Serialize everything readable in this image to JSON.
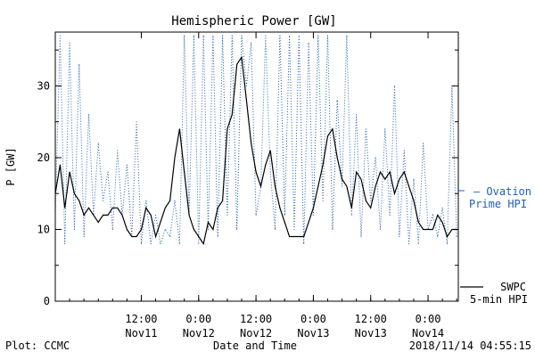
{
  "chart_data": {
    "type": "line",
    "title": "Hemispheric Power [GW]",
    "xlabel": "Date and Time",
    "ylabel": "P [GW]",
    "ylim": [
      0,
      37.5
    ],
    "xlim": [
      "2018-11-10T18:00",
      "2018-11-14T06:20"
    ],
    "yticks": [
      0,
      10,
      20,
      30
    ],
    "xticks": [
      {
        "value": "2018-11-11T12:00",
        "time": "12:00",
        "date": "Nov11"
      },
      {
        "value": "2018-11-12T00:00",
        "time": "0:00",
        "date": "Nov12"
      },
      {
        "value": "2018-11-12T12:00",
        "time": "12:00",
        "date": "Nov12"
      },
      {
        "value": "2018-11-13T00:00",
        "time": "0:00",
        "date": "Nov13"
      },
      {
        "value": "2018-11-13T12:00",
        "time": "12:00",
        "date": "Nov13"
      },
      {
        "value": "2018-11-14T00:00",
        "time": "0:00",
        "date": "Nov14"
      }
    ],
    "grid": false,
    "legend_position": "right",
    "series": [
      {
        "name": "Ovation Prime HPI",
        "legend_lines": [
          "— Ovation",
          "Prime HPI"
        ],
        "color": "#1f5fb4",
        "style": "dotted",
        "x": [
          "2018-11-10T18:00",
          "2018-11-10T19:00",
          "2018-11-10T20:00",
          "2018-11-10T21:00",
          "2018-11-10T22:00",
          "2018-11-10T23:00",
          "2018-11-11T00:00",
          "2018-11-11T01:00",
          "2018-11-11T02:00",
          "2018-11-11T03:00",
          "2018-11-11T04:00",
          "2018-11-11T05:00",
          "2018-11-11T06:00",
          "2018-11-11T07:00",
          "2018-11-11T08:00",
          "2018-11-11T09:00",
          "2018-11-11T10:00",
          "2018-11-11T11:00",
          "2018-11-11T12:00",
          "2018-11-11T13:00",
          "2018-11-11T14:00",
          "2018-11-11T15:00",
          "2018-11-11T16:00",
          "2018-11-11T17:00",
          "2018-11-11T18:00",
          "2018-11-11T19:00",
          "2018-11-11T20:00",
          "2018-11-11T21:00",
          "2018-11-11T22:00",
          "2018-11-11T23:00",
          "2018-11-12T00:00",
          "2018-11-12T01:00",
          "2018-11-12T02:00",
          "2018-11-12T03:00",
          "2018-11-12T04:00",
          "2018-11-12T05:00",
          "2018-11-12T06:00",
          "2018-11-12T07:00",
          "2018-11-12T08:00",
          "2018-11-12T09:00",
          "2018-11-12T10:00",
          "2018-11-12T11:00",
          "2018-11-12T12:00",
          "2018-11-12T13:00",
          "2018-11-12T14:00",
          "2018-11-12T15:00",
          "2018-11-12T16:00",
          "2018-11-12T17:00",
          "2018-11-12T18:00",
          "2018-11-12T19:00",
          "2018-11-12T20:00",
          "2018-11-12T21:00",
          "2018-11-12T22:00",
          "2018-11-12T23:00",
          "2018-11-13T00:00",
          "2018-11-13T01:00",
          "2018-11-13T02:00",
          "2018-11-13T03:00",
          "2018-11-13T04:00",
          "2018-11-13T05:00",
          "2018-11-13T06:00",
          "2018-11-13T07:00",
          "2018-11-13T08:00",
          "2018-11-13T09:00",
          "2018-11-13T10:00",
          "2018-11-13T11:00",
          "2018-11-13T12:00",
          "2018-11-13T13:00",
          "2018-11-13T14:00",
          "2018-11-13T15:00",
          "2018-11-13T16:00",
          "2018-11-13T17:00",
          "2018-11-13T18:00",
          "2018-11-13T19:00",
          "2018-11-13T20:00",
          "2018-11-13T21:00",
          "2018-11-13T22:00",
          "2018-11-13T23:00",
          "2018-11-14T00:00",
          "2018-11-14T01:00",
          "2018-11-14T02:00",
          "2018-11-14T03:00",
          "2018-11-14T04:00",
          "2018-11-14T05:00",
          "2018-11-14T06:00"
        ],
        "values": [
          12,
          37,
          8,
          36,
          10,
          33,
          9,
          26,
          12,
          22,
          14,
          18,
          10,
          21,
          12,
          19,
          9,
          25,
          8,
          14,
          8,
          12,
          8,
          10,
          9,
          14,
          8,
          37,
          12,
          37,
          8,
          37,
          10,
          37,
          9,
          37,
          12,
          37,
          10,
          37,
          30,
          36,
          12,
          16,
          37,
          18,
          10,
          37,
          12,
          37,
          10,
          37,
          8,
          36,
          12,
          37,
          14,
          37,
          10,
          28,
          16,
          37,
          12,
          26,
          9,
          24,
          14,
          20,
          10,
          24,
          12,
          30,
          9,
          21,
          8,
          17,
          8,
          22,
          10,
          12,
          9,
          13,
          8,
          30,
          9
        ]
      },
      {
        "name": "SWPC 5-min HPI",
        "legend_lines": [
          "SWPC",
          "5-min HPI"
        ],
        "color": "#000000",
        "style": "solid",
        "x": [
          "2018-11-10T18:00",
          "2018-11-10T19:00",
          "2018-11-10T20:00",
          "2018-11-10T21:00",
          "2018-11-10T22:00",
          "2018-11-10T23:00",
          "2018-11-11T00:00",
          "2018-11-11T01:00",
          "2018-11-11T02:00",
          "2018-11-11T03:00",
          "2018-11-11T04:00",
          "2018-11-11T05:00",
          "2018-11-11T06:00",
          "2018-11-11T07:00",
          "2018-11-11T08:00",
          "2018-11-11T09:00",
          "2018-11-11T10:00",
          "2018-11-11T11:00",
          "2018-11-11T12:00",
          "2018-11-11T13:00",
          "2018-11-11T14:00",
          "2018-11-11T15:00",
          "2018-11-11T16:00",
          "2018-11-11T17:00",
          "2018-11-11T18:00",
          "2018-11-11T19:00",
          "2018-11-11T20:00",
          "2018-11-11T21:00",
          "2018-11-11T22:00",
          "2018-11-11T23:00",
          "2018-11-12T00:00",
          "2018-11-12T01:00",
          "2018-11-12T02:00",
          "2018-11-12T03:00",
          "2018-11-12T04:00",
          "2018-11-12T05:00",
          "2018-11-12T06:00",
          "2018-11-12T07:00",
          "2018-11-12T08:00",
          "2018-11-12T09:00",
          "2018-11-12T10:00",
          "2018-11-12T11:00",
          "2018-11-12T12:00",
          "2018-11-12T13:00",
          "2018-11-12T14:00",
          "2018-11-12T15:00",
          "2018-11-12T16:00",
          "2018-11-12T17:00",
          "2018-11-12T18:00",
          "2018-11-12T19:00",
          "2018-11-12T20:00",
          "2018-11-12T21:00",
          "2018-11-12T22:00",
          "2018-11-12T23:00",
          "2018-11-13T00:00",
          "2018-11-13T01:00",
          "2018-11-13T02:00",
          "2018-11-13T03:00",
          "2018-11-13T04:00",
          "2018-11-13T05:00",
          "2018-11-13T06:00",
          "2018-11-13T07:00",
          "2018-11-13T08:00",
          "2018-11-13T09:00",
          "2018-11-13T10:00",
          "2018-11-13T11:00",
          "2018-11-13T12:00",
          "2018-11-13T13:00",
          "2018-11-13T14:00",
          "2018-11-13T15:00",
          "2018-11-13T16:00",
          "2018-11-13T17:00",
          "2018-11-13T18:00",
          "2018-11-13T19:00",
          "2018-11-13T20:00",
          "2018-11-13T21:00",
          "2018-11-13T22:00",
          "2018-11-13T23:00",
          "2018-11-14T00:00",
          "2018-11-14T01:00",
          "2018-11-14T02:00",
          "2018-11-14T03:00",
          "2018-11-14T04:00",
          "2018-11-14T05:00",
          "2018-11-14T06:00"
        ],
        "values": [
          15,
          19,
          13,
          18,
          15,
          14,
          12,
          13,
          12,
          11,
          12,
          12,
          13,
          13,
          12,
          10,
          9,
          9,
          10,
          13,
          12,
          9,
          11,
          13,
          14,
          20,
          24,
          18,
          12,
          10,
          9,
          8,
          11,
          10,
          13,
          14,
          24,
          26,
          33,
          34,
          28,
          22,
          18,
          16,
          19,
          21,
          16,
          13,
          11,
          9,
          9,
          9,
          9,
          11,
          13,
          16,
          19,
          23,
          24,
          20,
          17,
          16,
          13,
          18,
          17,
          14,
          13,
          16,
          18,
          17,
          18,
          15,
          17,
          18,
          16,
          14,
          11,
          10,
          10,
          10,
          12,
          11,
          9,
          10,
          10
        ]
      }
    ]
  },
  "footer": {
    "plot_credit": "Plot: CCMC",
    "timestamp": "2018/11/14 04:55:15"
  }
}
